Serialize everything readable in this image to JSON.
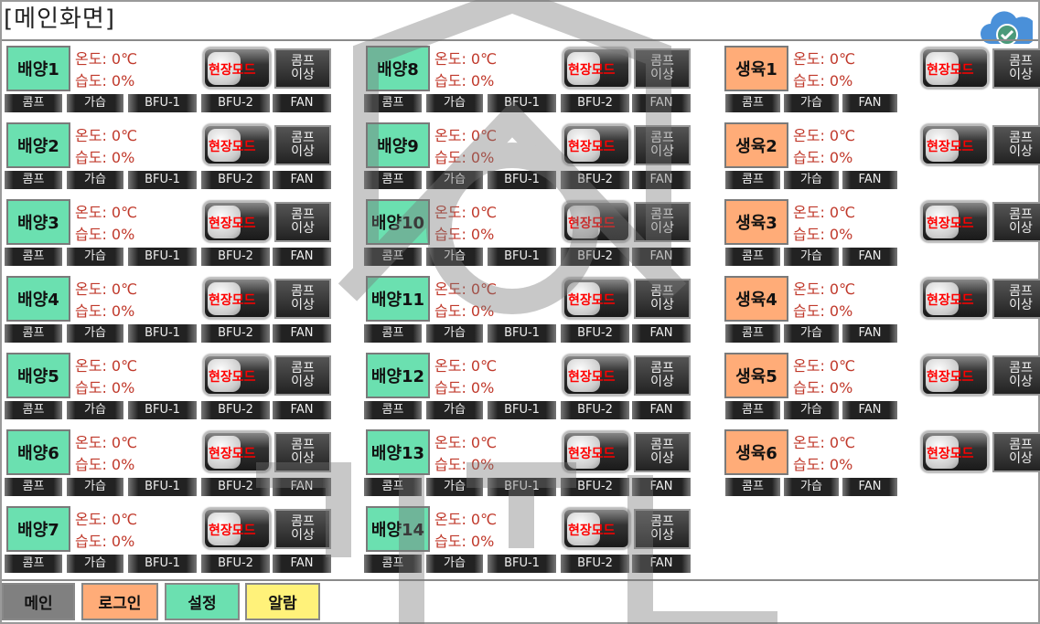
{
  "header": {
    "title": "[메인화면]",
    "cloud_icon": "cloud-check-icon"
  },
  "labels": {
    "temp": "온도: 0℃",
    "humid": "습도: 0%",
    "mode": "현장모드",
    "error": [
      "콤프",
      "이상"
    ]
  },
  "colors": {
    "culture": "#6be0b0",
    "growth": "#ffac78"
  },
  "columns": [
    {
      "type": "culture",
      "subs": [
        "콤프",
        "가습",
        "BFU-1",
        "BFU-2",
        "FAN"
      ],
      "items": [
        "배양1",
        "배양2",
        "배양3",
        "배양4",
        "배양5",
        "배양6",
        "배양7"
      ]
    },
    {
      "type": "culture",
      "subs": [
        "콤프",
        "가습",
        "BFU-1",
        "BFU-2",
        "FAN"
      ],
      "items": [
        "배양8",
        "배양9",
        "배양10",
        "배양11",
        "배양12",
        "배양13",
        "배양14"
      ]
    },
    {
      "type": "growth",
      "subs": [
        "콤프",
        "가습",
        "FAN"
      ],
      "items": [
        "생육1",
        "생육2",
        "생육3",
        "생육4",
        "생육5",
        "생육6"
      ]
    }
  ],
  "nav": [
    {
      "label": "메인",
      "color": "#808080"
    },
    {
      "label": "로그인",
      "color": "#ffac78"
    },
    {
      "label": "설정",
      "color": "#6be0b0"
    },
    {
      "label": "알람",
      "color": "#fff27a"
    }
  ]
}
